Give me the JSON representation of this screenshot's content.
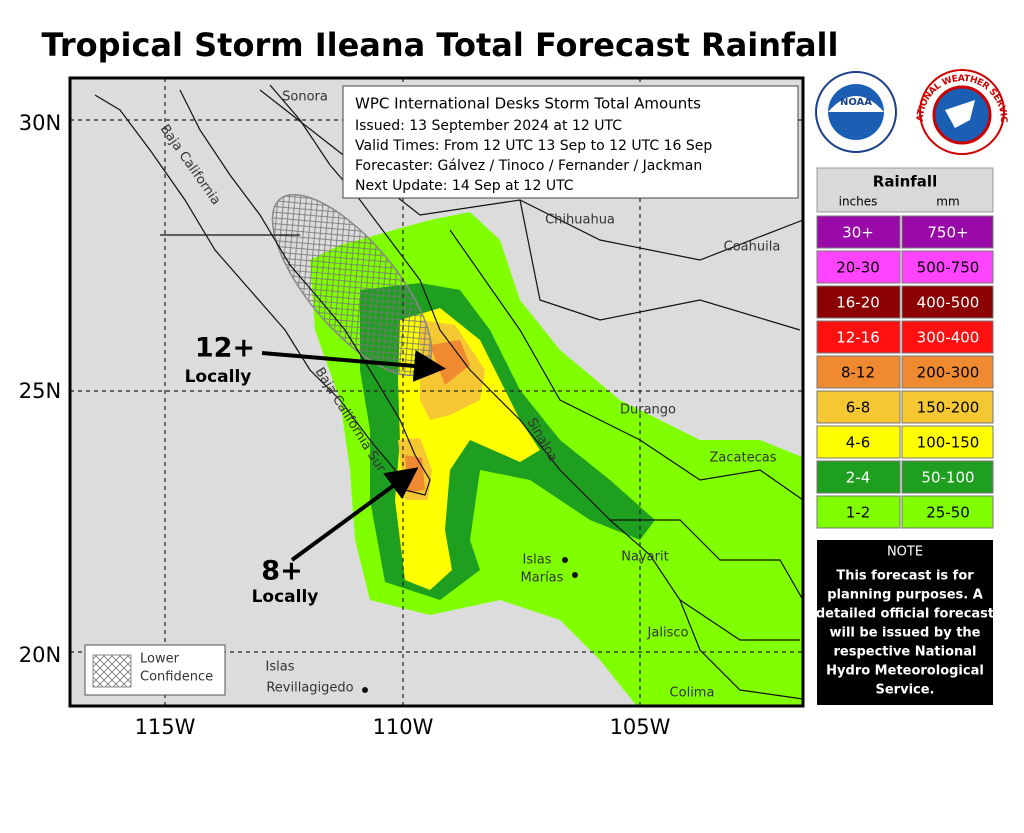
{
  "header": {
    "title": "Tropical Storm Ileana Total Forecast Rainfall"
  },
  "axes": {
    "lat": [
      "30N",
      "25N",
      "20N"
    ],
    "lon": [
      "115W",
      "110W",
      "105W"
    ]
  },
  "info_box": {
    "title": "WPC International Desks Storm Total Amounts",
    "lines": [
      "Issued:  13 September 2024 at 12 UTC",
      "Valid Times:  From 12 UTC 13 Sep  to  12 UTC 16 Sep",
      "Forecaster: Gálvez / Tinoco / Fernander / Jackman",
      "Next Update: 14 Sep at 12 UTC"
    ]
  },
  "places": {
    "sonora": "Sonora",
    "baja_california": "Baja California",
    "chihuahua": "Chihuahua",
    "coahuila": "Coahuila",
    "durango": "Durango",
    "sinaloa": "Sinaloa",
    "zacatecas": "Zacatecas",
    "nayarit": "Nayarit",
    "jalisco": "Jalisco",
    "colima": "Colima",
    "baja_california_sur": "Baja California Sur",
    "islas_marias": [
      "Islas",
      "Marías"
    ],
    "islas_revillagigedo": [
      "Islas",
      "Revillagigedo"
    ]
  },
  "annotations": [
    {
      "amount": "12+",
      "text": "Locally"
    },
    {
      "amount": "8+",
      "text": "Locally"
    }
  ],
  "confidence_legend": [
    "Lower",
    "Confidence"
  ],
  "logos": {
    "noaa": "NOAA",
    "nws": "NATIONAL WEATHER SERVICE"
  },
  "legend": {
    "title": "Rainfall",
    "units": [
      "inches",
      "mm"
    ],
    "rows": [
      {
        "inches": "30+",
        "mm": "750+"
      },
      {
        "inches": "20-30",
        "mm": "500-750"
      },
      {
        "inches": "16-20",
        "mm": "400-500"
      },
      {
        "inches": "12-16",
        "mm": "300-400"
      },
      {
        "inches": "8-12",
        "mm": "200-300"
      },
      {
        "inches": "6-8",
        "mm": "150-200"
      },
      {
        "inches": "4-6",
        "mm": "100-150"
      },
      {
        "inches": "2-4",
        "mm": "50-100"
      },
      {
        "inches": "1-2",
        "mm": "25-50"
      }
    ]
  },
  "note": {
    "title": "NOTE",
    "lines": [
      "This forecast is for",
      "planning purposes. A",
      "detailed official forecast",
      "will be issued by the",
      "respective National",
      "Hydro Meteorological",
      "Service."
    ]
  }
}
